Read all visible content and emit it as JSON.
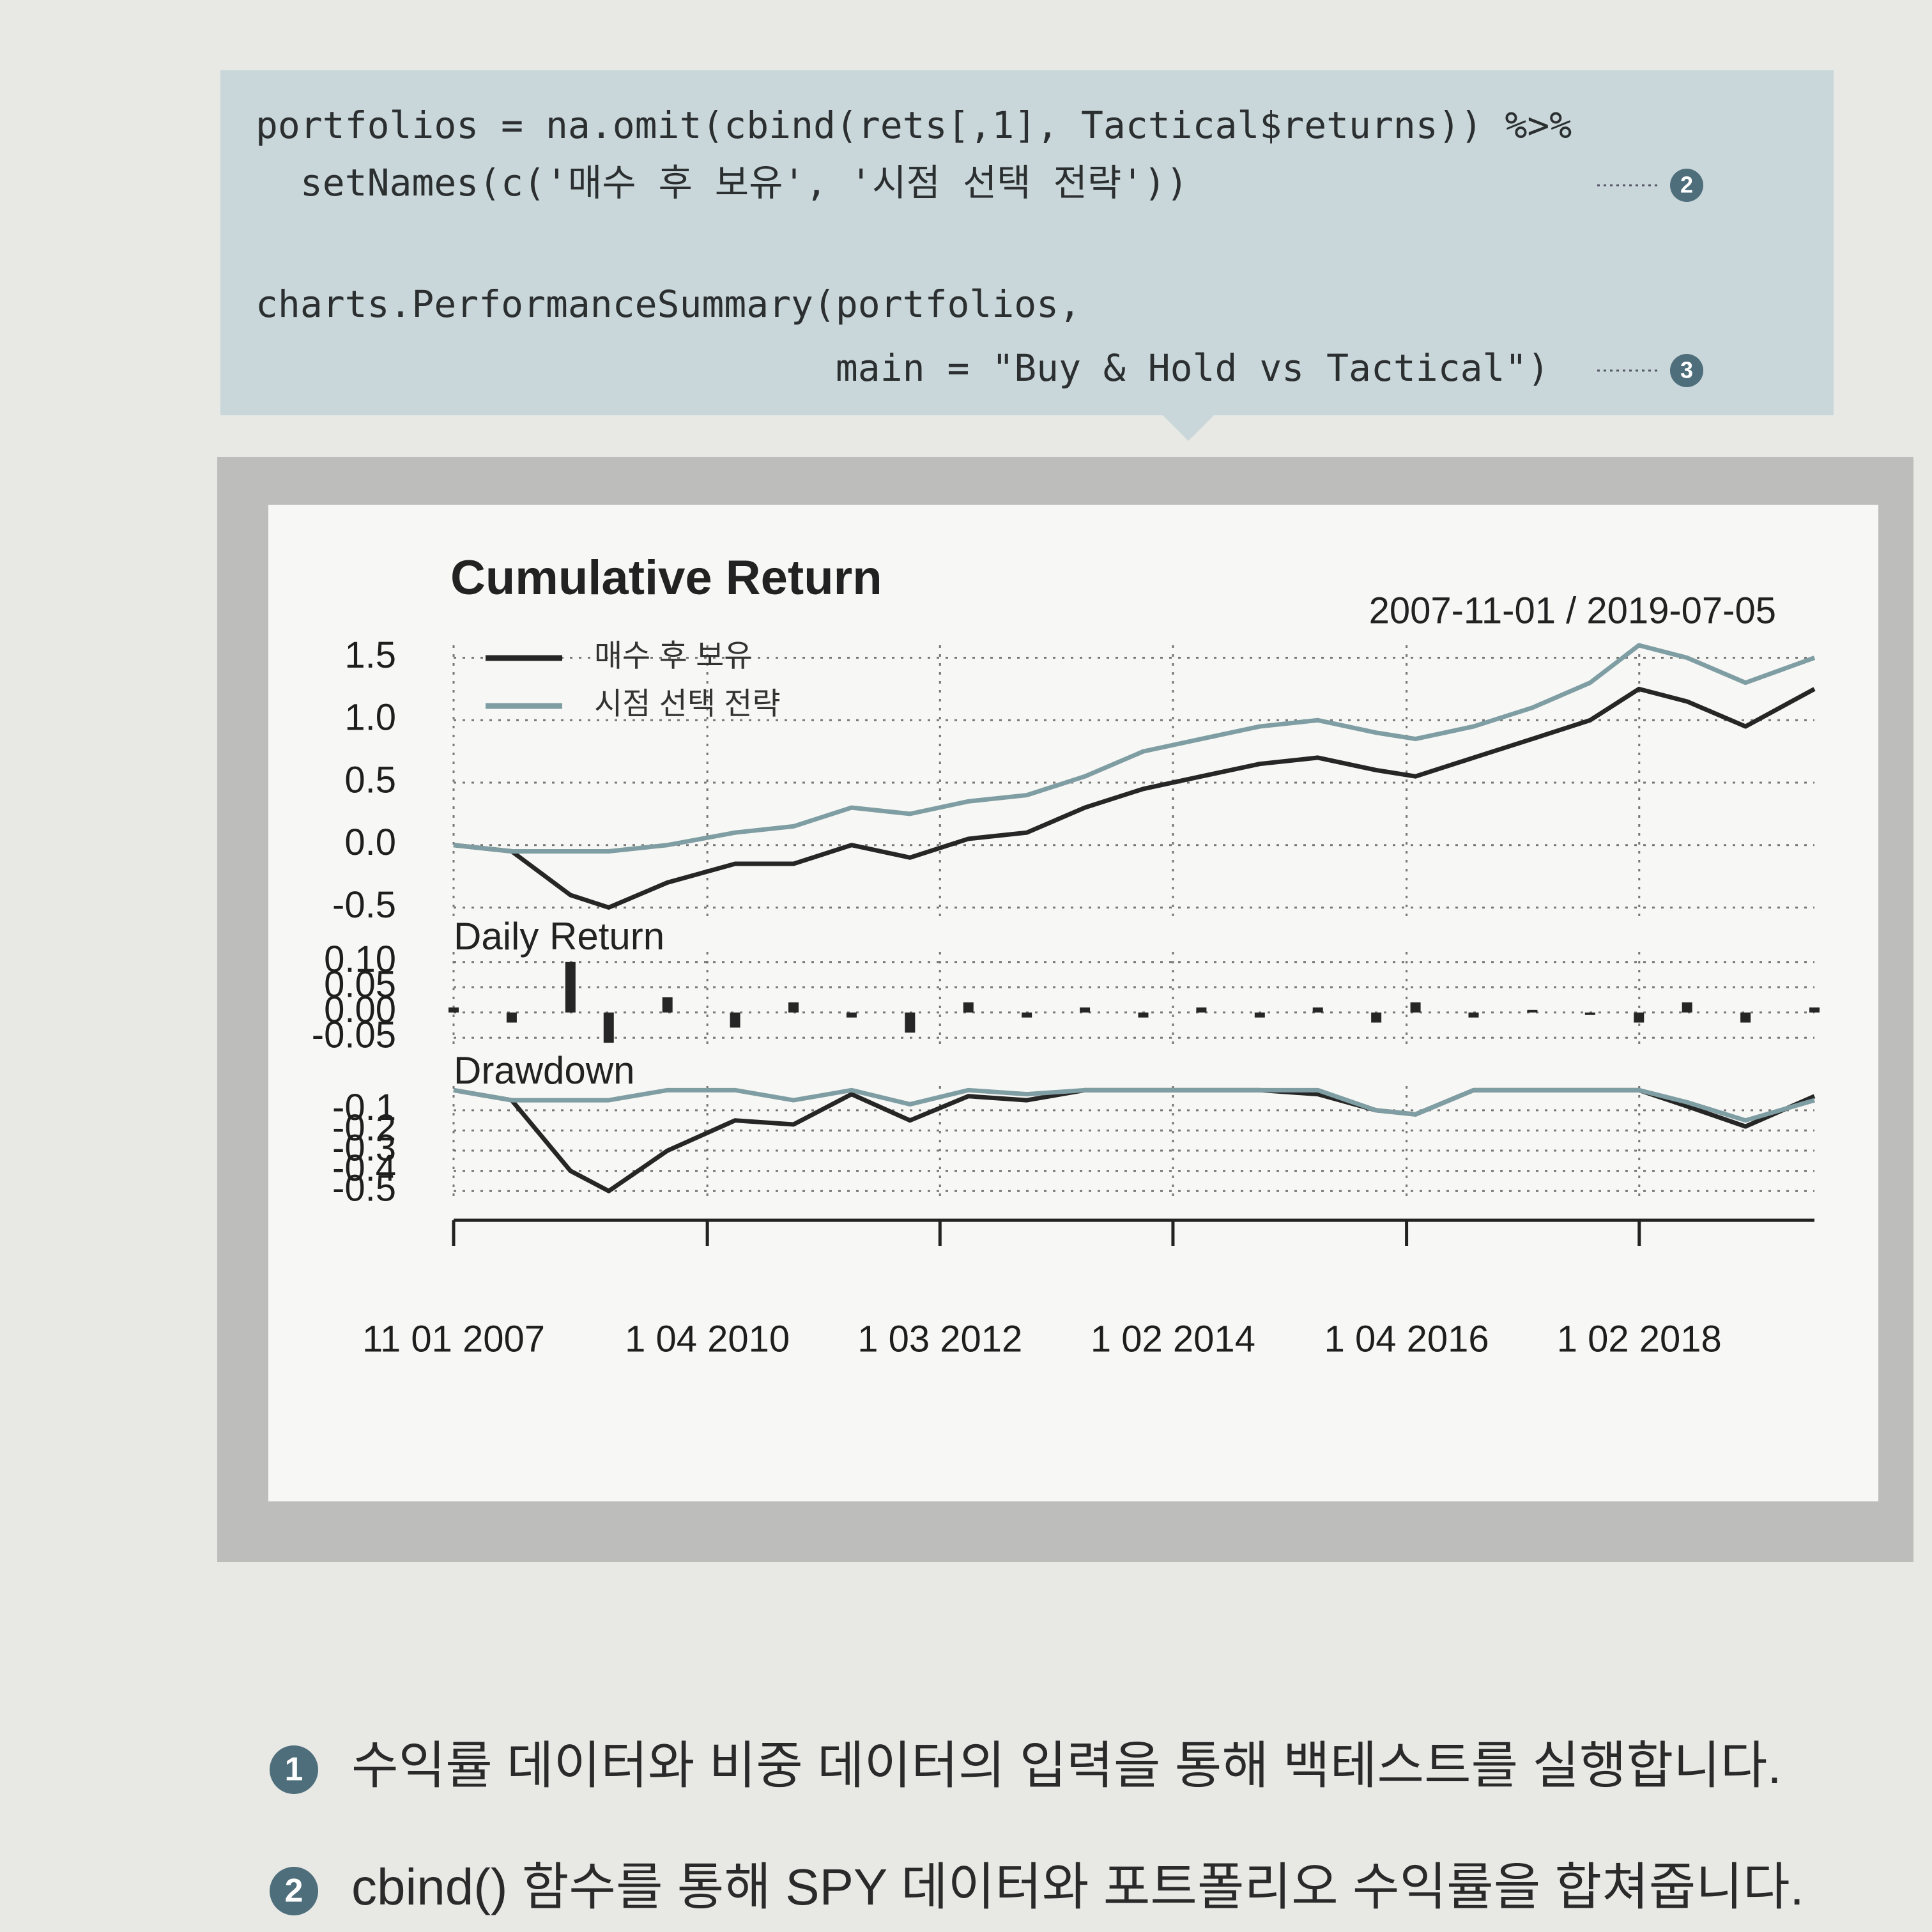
{
  "code": {
    "lines": [
      "portfolios = na.omit(cbind(rets[,1], Tactical$returns)) %>%",
      "  setNames(c('매수 후 보유', '시점 선택 전략'))",
      "charts.PerformanceSummary(portfolios,",
      "                          main = \"Buy & Hold vs Tactical\")"
    ],
    "callouts": [
      {
        "line": 1,
        "label": "2"
      },
      {
        "line": 3,
        "label": "3"
      }
    ]
  },
  "chart_data": [
    {
      "type": "line",
      "title": "Cumulative Return",
      "subtitle": "2007-11-01 / 2019-07-05",
      "x": [
        "2007-11-01",
        "2008-05-01",
        "2008-11-01",
        "2009-03-01",
        "2009-09-01",
        "2010-04-01",
        "2010-10-01",
        "2011-04-01",
        "2011-10-01",
        "2012-04-01",
        "2012-10-01",
        "2013-04-01",
        "2013-10-01",
        "2014-04-01",
        "2014-10-01",
        "2015-04-01",
        "2015-10-01",
        "2016-02-01",
        "2016-08-01",
        "2017-02-01",
        "2017-08-01",
        "2018-01-01",
        "2018-06-01",
        "2018-12-01",
        "2019-07-05"
      ],
      "series": [
        {
          "name": "매수 후 보유",
          "color": "#262626",
          "values": [
            0,
            -0.05,
            -0.4,
            -0.5,
            -0.3,
            -0.15,
            -0.15,
            0,
            -0.1,
            0.05,
            0.1,
            0.3,
            0.45,
            0.55,
            0.65,
            0.7,
            0.6,
            0.55,
            0.7,
            0.85,
            1.0,
            1.25,
            1.15,
            0.95,
            1.25
          ]
        },
        {
          "name": "시점 선택 전략",
          "color": "#7f9ea3",
          "values": [
            0,
            -0.05,
            -0.05,
            -0.05,
            0,
            0.1,
            0.15,
            0.3,
            0.25,
            0.35,
            0.4,
            0.55,
            0.75,
            0.85,
            0.95,
            1.0,
            0.9,
            0.85,
            0.95,
            1.1,
            1.3,
            1.6,
            1.5,
            1.3,
            1.5
          ]
        }
      ],
      "ylim": [
        -0.6,
        1.6
      ],
      "yticks": [
        {
          "value": 1.5,
          "label": "1.5"
        },
        {
          "value": 1,
          "label": "1.0"
        },
        0.5,
        {
          "value": 0,
          "label": "0.0"
        },
        -0.5
      ],
      "grid": true
    },
    {
      "type": "bar",
      "title": "Daily Return",
      "color": "#262626",
      "x": [
        "2007-11-01",
        "2008-05-01",
        "2008-11-01",
        "2009-03-01",
        "2009-09-01",
        "2010-04-01",
        "2010-10-01",
        "2011-04-01",
        "2011-10-01",
        "2012-04-01",
        "2012-10-01",
        "2013-04-01",
        "2013-10-01",
        "2014-04-01",
        "2014-10-01",
        "2015-04-01",
        "2015-10-01",
        "2016-02-01",
        "2016-08-01",
        "2017-02-01",
        "2017-08-01",
        "2018-01-01",
        "2018-06-01",
        "2018-12-01",
        "2019-07-05"
      ],
      "values": [
        0.01,
        -0.02,
        0.1,
        -0.06,
        0.03,
        -0.03,
        0.02,
        -0.01,
        -0.04,
        0.02,
        -0.01,
        0.01,
        -0.01,
        0.01,
        -0.01,
        0.01,
        -0.02,
        0.02,
        -0.01,
        0.005,
        -0.005,
        -0.02,
        0.02,
        -0.02,
        0.01
      ],
      "ylim": [
        -0.07,
        0.12
      ],
      "yticks": [
        {
          "value": 0.1,
          "label": "0.10"
        },
        0.05,
        {
          "value": 0,
          "label": "0.00"
        },
        -0.05
      ],
      "grid": true
    },
    {
      "type": "line",
      "title": "Drawdown",
      "x": [
        "2007-11-01",
        "2008-05-01",
        "2008-11-01",
        "2009-03-01",
        "2009-09-01",
        "2010-04-01",
        "2010-10-01",
        "2011-04-01",
        "2011-10-01",
        "2012-04-01",
        "2012-10-01",
        "2013-04-01",
        "2013-10-01",
        "2014-04-01",
        "2014-10-01",
        "2015-04-01",
        "2015-10-01",
        "2016-02-01",
        "2016-08-01",
        "2017-02-01",
        "2017-08-01",
        "2018-01-01",
        "2018-06-01",
        "2018-12-01",
        "2019-07-05"
      ],
      "series": [
        {
          "name": "매수 후 보유",
          "color": "#262626",
          "values": [
            0,
            -0.05,
            -0.4,
            -0.5,
            -0.3,
            -0.15,
            -0.17,
            -0.02,
            -0.15,
            -0.03,
            -0.05,
            0,
            0,
            0,
            0,
            -0.02,
            -0.1,
            -0.12,
            0,
            0,
            0,
            0,
            -0.08,
            -0.18,
            -0.03
          ]
        },
        {
          "name": "시점 선택 전략",
          "color": "#7f9ea3",
          "values": [
            0,
            -0.05,
            -0.05,
            -0.05,
            0,
            0,
            -0.05,
            0,
            -0.07,
            0,
            -0.02,
            0,
            0,
            0,
            0,
            0,
            -0.1,
            -0.12,
            0,
            0,
            0,
            0,
            -0.06,
            -0.15,
            -0.05
          ]
        }
      ],
      "ylim": [
        -0.55,
        0.02
      ],
      "yticks": [
        -0.1,
        -0.2,
        -0.3,
        -0.4,
        -0.5
      ],
      "grid": true,
      "xlim": [
        "2007-11-01",
        "2019-07-05"
      ],
      "xticks": [
        {
          "value": "2007-11-01",
          "label": "11 01 2007"
        },
        {
          "value": "2010-01-04",
          "label": "1 04 2010"
        },
        {
          "value": "2012-01-03",
          "label": "1 03 2012"
        },
        {
          "value": "2014-01-02",
          "label": "1 02 2014"
        },
        {
          "value": "2016-01-04",
          "label": "1 04 2016"
        },
        {
          "value": "2018-01-02",
          "label": "1 02 2018"
        }
      ]
    }
  ],
  "notes": [
    {
      "number": "1",
      "text": "수익률 데이터와 비중 데이터의 입력을 통해 백테스트를 실행합니다."
    },
    {
      "number": "2",
      "text": "cbind() 함수를 통해 SPY 데이터와 포트폴리오 수익률을 합쳐줍니다."
    }
  ]
}
